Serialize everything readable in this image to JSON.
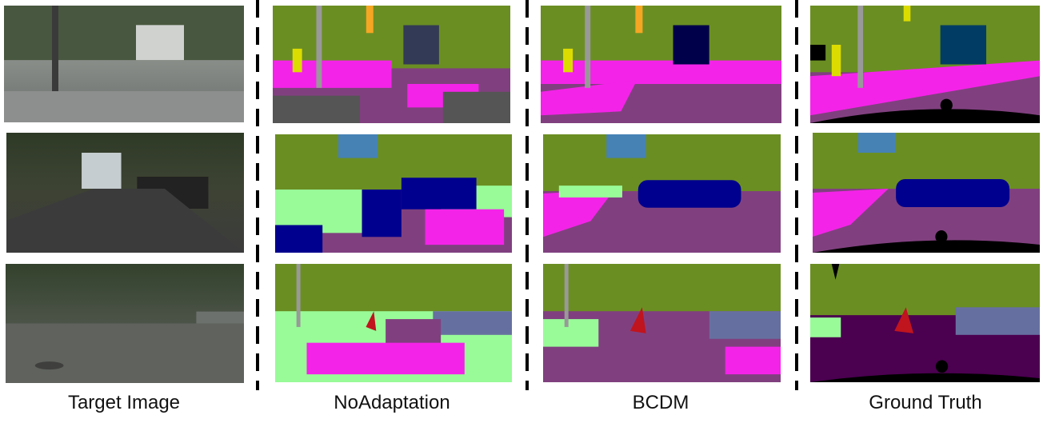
{
  "columns": [
    {
      "label": "Target Image"
    },
    {
      "label": "NoAdaptation"
    },
    {
      "label": "BCDM"
    },
    {
      "label": "Ground Truth"
    }
  ]
}
